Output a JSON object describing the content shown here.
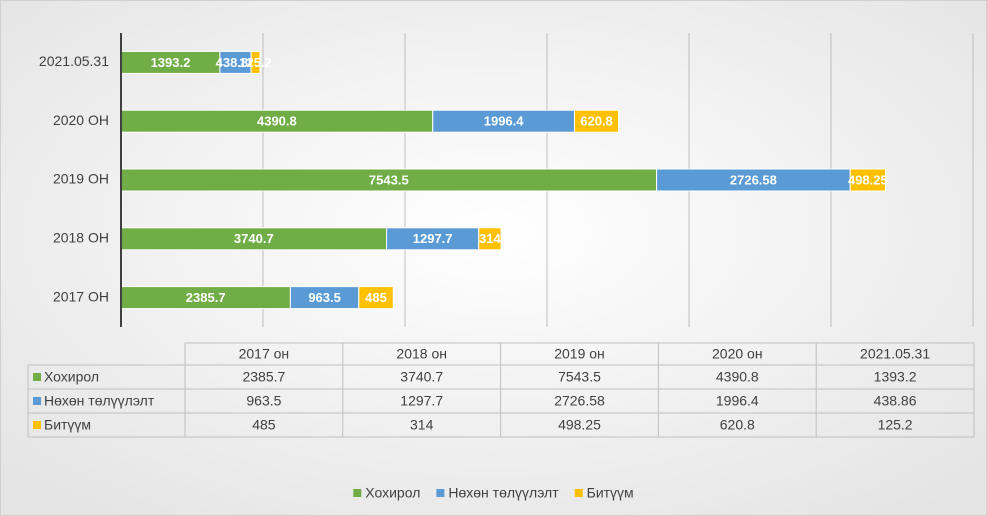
{
  "chart_data": {
    "type": "stacked_hbar",
    "categories": [
      "2017 ОН",
      "2018 ОН",
      "2019 ОН",
      "2020 ОН",
      "2021.05.31"
    ],
    "table_columns": [
      "2017 он",
      "2018 он",
      "2019 он",
      "2020 он",
      "2021.05.31"
    ],
    "series": [
      {
        "name": "Хохирол",
        "color": "#70ad47",
        "values": [
          2385.7,
          3740.7,
          7543.5,
          4390.8,
          1393.2
        ]
      },
      {
        "name": "Нөхөн төлүүлэлт",
        "color": "#5b9bd5",
        "values": [
          963.5,
          1297.7,
          2726.58,
          1996.4,
          438.86
        ]
      },
      {
        "name": "Битүүм",
        "color": "#ffc000",
        "values": [
          485,
          314,
          498.25,
          620.8,
          125.2
        ]
      }
    ],
    "xlim": [
      0,
      12000
    ],
    "xticks": [
      0,
      2000,
      4000,
      6000,
      8000,
      10000,
      12000
    ],
    "grid": true
  }
}
